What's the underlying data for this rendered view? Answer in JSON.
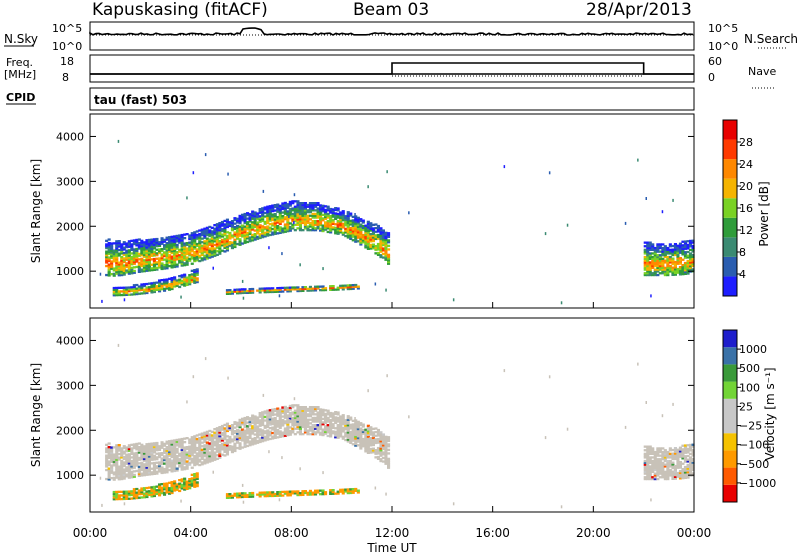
{
  "header": {
    "station": "Kapuskasing (fitACF)",
    "beam": "Beam 03",
    "date": "28/Apr/2013"
  },
  "strips": {
    "nsky_label": "N.Sky",
    "nsky_ticks": [
      "10^5",
      "10^0"
    ],
    "nsearch_label": "N.Search",
    "nsearch_ticks": [
      "10^5",
      "10^0"
    ],
    "freq_label": "Freq.",
    "freq_unit": "[MHz]",
    "freq_ticks": [
      "18",
      "8"
    ],
    "nave_label": "Nave",
    "nave_ticks": [
      "60",
      "0"
    ],
    "cpid_label": "CPID",
    "cpid_value": "tau (fast) 503"
  },
  "colors": {
    "power": [
      "#1e1eff",
      "#2a5db0",
      "#3a8a72",
      "#2f9c3a",
      "#7ad224",
      "#f5b400",
      "#ff8800",
      "#ff3a00",
      "#e80000"
    ],
    "velocity": [
      "#e80000",
      "#ff5a00",
      "#ff9a00",
      "#f5c200",
      "#c8c8c8",
      "#c8c8c8",
      "#72d436",
      "#3a9a3a",
      "#3a72a8",
      "#1e1ecc"
    ],
    "ground_scatter": "#c8c2b8"
  },
  "chart_data": [
    {
      "type": "heatmap",
      "panel": "power",
      "xlabel": "Time UT",
      "ylabel": "Slant Range [km]",
      "x_ticks": [
        "00:00",
        "04:00",
        "08:00",
        "12:00",
        "16:00",
        "20:00",
        "00:00"
      ],
      "x_range_hours": [
        0,
        24
      ],
      "ylim": [
        180,
        4500
      ],
      "y_ticks": [
        1000,
        2000,
        3000,
        4000
      ],
      "colorbar": {
        "label": "Power [dB]",
        "ticks": [
          "4",
          "8",
          "12",
          "16",
          "20",
          "24",
          "28"
        ],
        "range": [
          0,
          32
        ]
      },
      "regions": [
        {
          "name": "f-region-night",
          "t": [
            0.6,
            0.8,
            1.2,
            2.0,
            3.0,
            4.0,
            5.0,
            6.0,
            7.0,
            8.0,
            9.0,
            10.0,
            10.8,
            11.4,
            11.8
          ],
          "r_low": [
            900,
            880,
            900,
            980,
            1050,
            1150,
            1350,
            1600,
            1780,
            1900,
            1900,
            1800,
            1550,
            1350,
            1150
          ],
          "r_high": [
            1700,
            1700,
            1650,
            1700,
            1750,
            1850,
            2050,
            2250,
            2450,
            2550,
            2500,
            2350,
            2150,
            2000,
            1850
          ]
        },
        {
          "name": "e-region",
          "t": [
            0.9,
            1.5,
            2.2,
            3.0,
            3.6,
            4.3
          ],
          "r_low": [
            450,
            460,
            500,
            560,
            650,
            760
          ],
          "r_high": [
            620,
            660,
            720,
            820,
            920,
            1050
          ]
        },
        {
          "name": "e-region-late",
          "t": [
            5.4,
            6.0,
            7.0,
            8.0,
            9.0,
            10.0,
            10.6
          ],
          "r_low": [
            480,
            500,
            520,
            540,
            560,
            580,
            600
          ],
          "r_high": [
            580,
            600,
            620,
            650,
            680,
            700,
            720
          ]
        },
        {
          "name": "f-region-evening",
          "t": [
            22.0,
            22.5,
            23.0,
            23.5,
            24.0
          ],
          "r_low": [
            900,
            900,
            900,
            920,
            950
          ],
          "r_high": [
            1650,
            1600,
            1600,
            1650,
            1700
          ]
        }
      ]
    },
    {
      "type": "heatmap",
      "panel": "velocity",
      "xlabel": "Time UT",
      "ylabel": "Slant Range [km]",
      "x_ticks": [
        "00:00",
        "04:00",
        "08:00",
        "12:00",
        "16:00",
        "20:00",
        "00:00"
      ],
      "x_range_hours": [
        0,
        24
      ],
      "ylim": [
        180,
        4500
      ],
      "y_ticks": [
        1000,
        2000,
        3000,
        4000
      ],
      "colorbar": {
        "label": "Velocity [m s⁻¹]",
        "ticks": [
          "−1000",
          "−500",
          "−100",
          "−25",
          "25",
          "100",
          "500",
          "1000"
        ],
        "range": [
          -1200,
          1200
        ]
      }
    }
  ],
  "x_axis_title": "Time UT"
}
